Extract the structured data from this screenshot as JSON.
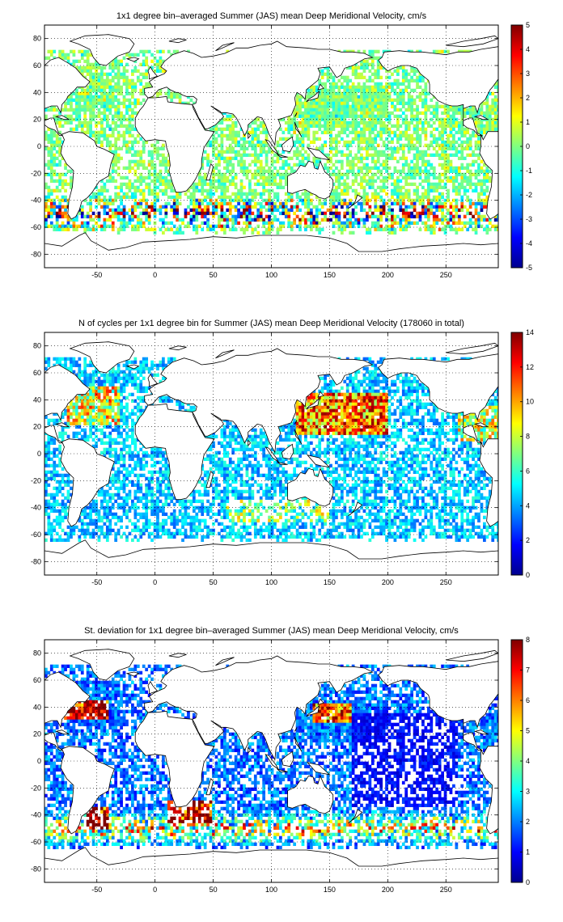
{
  "colormap": [
    "#00008f",
    "#0000ff",
    "#0080ff",
    "#00ffff",
    "#80ff80",
    "#ffff00",
    "#ff8000",
    "#ff0000",
    "#800000"
  ],
  "chart_data": [
    {
      "type": "heatmap",
      "title": "1x1 degree bin–averaged Summer (JAS) mean Deep Meridional Velocity, cm/s",
      "xlim": [
        -95,
        295
      ],
      "ylim": [
        -90,
        90
      ],
      "xticks": [
        -50,
        0,
        50,
        100,
        150,
        200,
        250
      ],
      "yticks": [
        80,
        60,
        40,
        20,
        0,
        -20,
        -40,
        -60,
        -80
      ],
      "clim": [
        -5,
        5
      ],
      "cbar_ticks": [
        5,
        4,
        3,
        2,
        1,
        0,
        -1,
        -2,
        -3,
        -4,
        -5
      ],
      "grid": true,
      "field": "signed velocity, mostly near 0 cm/s with strong positive/negative values along the Southern Ocean (~-40 to -60 latitude)"
    },
    {
      "type": "heatmap",
      "title": "N of cycles per 1x1 degree bin for Summer (JAS) mean Deep Meridional Velocity (178060 in total)",
      "xlim": [
        -95,
        295
      ],
      "ylim": [
        -90,
        90
      ],
      "xticks": [
        -50,
        0,
        50,
        100,
        150,
        200,
        250
      ],
      "yticks": [
        80,
        60,
        40,
        20,
        0,
        -20,
        -40,
        -60,
        -80
      ],
      "clim": [
        0,
        14
      ],
      "cbar_ticks": [
        14,
        12,
        10,
        8,
        6,
        4,
        2,
        0
      ],
      "grid": true,
      "field": "cycle counts, highest (10-14) in NW Pacific, Kuroshio, North Atlantic; low (1-5) in most other basins"
    },
    {
      "type": "heatmap",
      "title": "St. deviation for 1x1 degree bin–averaged Summer (JAS) mean Deep Meridional Velocity, cm/s",
      "xlim": [
        -95,
        295
      ],
      "ylim": [
        -90,
        90
      ],
      "xticks": [
        -50,
        0,
        50,
        100,
        150,
        200,
        250
      ],
      "yticks": [
        80,
        60,
        40,
        20,
        0,
        -20,
        -40,
        -60,
        -80
      ],
      "clim": [
        0,
        8
      ],
      "cbar_ticks": [
        8,
        7,
        6,
        5,
        4,
        3,
        2,
        1,
        0
      ],
      "grid": true,
      "field": "standard deviation, low (0-2) in the central Pacific, high (6-8) in the Gulf Stream, Kuroshio, Agulhas and Antarctic Circumpolar Current"
    }
  ]
}
